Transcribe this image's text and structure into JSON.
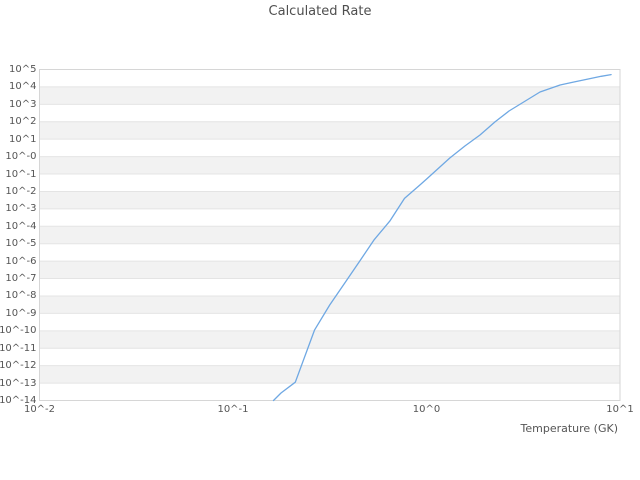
{
  "colors": {
    "background": "#ffffff",
    "band": "#f2f2f2",
    "grid": "#e4e4e4",
    "border": "#d6d6d6",
    "text": "#555555",
    "title_text": "#4f4f4f",
    "curve": "#6fa8e3"
  },
  "chart_data": {
    "type": "line",
    "title": "Calculated Rate",
    "xlabel": "Temperature (GK)",
    "ylabel": "",
    "x_scale": "log",
    "y_scale": "log",
    "x_range_log10": [
      -2,
      1
    ],
    "y_range_log10": [
      -14,
      5
    ],
    "x_tick_labels": [
      "10^-2",
      "10^-1",
      "10^0",
      "10^1"
    ],
    "x_tick_log10": [
      -2,
      -1,
      0,
      1
    ],
    "y_tick_labels": [
      "10^5",
      "10^4",
      "10^3",
      "10^2",
      "10^1",
      "10^-0",
      "10^-1",
      "10^-2",
      "10^-3",
      "10^-4",
      "10^-5",
      "10^-6",
      "10^-7",
      "10^-8",
      "10^-9",
      "10^-10",
      "10^-11",
      "10^-12",
      "10^-13",
      "10^-14"
    ],
    "y_tick_log10": [
      5,
      4,
      3,
      2,
      1,
      0,
      -1,
      -2,
      -3,
      -4,
      -5,
      -6,
      -7,
      -8,
      -9,
      -10,
      -11,
      -12,
      -13,
      -14
    ],
    "grid": "horizontal gridlines at each decade, alternating shaded decade bands",
    "legend": "none",
    "series": [
      {
        "name": "calculated-rate",
        "color": "#6fa8e3",
        "temperature_GK": [
          0.162,
          0.177,
          0.21,
          0.264,
          0.316,
          0.378,
          0.452,
          0.535,
          0.646,
          0.77,
          0.925,
          1.0,
          1.1,
          1.32,
          1.58,
          1.89,
          2.26,
          2.67,
          3.0,
          3.86,
          4.9,
          5.78,
          7.0,
          8.0,
          9.0
        ],
        "log10_rate": [
          -14.0,
          -13.57,
          -12.95,
          -9.95,
          -8.52,
          -7.26,
          -5.99,
          -4.79,
          -3.7,
          -2.4,
          -1.63,
          -1.29,
          -0.88,
          -0.08,
          0.61,
          1.24,
          1.99,
          2.62,
          2.96,
          3.71,
          4.11,
          4.28,
          4.48,
          4.61,
          4.71
        ]
      }
    ]
  }
}
